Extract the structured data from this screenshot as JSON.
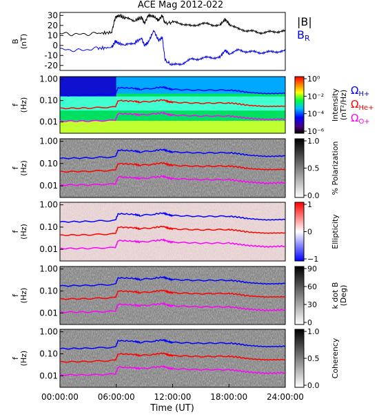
{
  "title": "ACE Mag 2012-022",
  "x_axis": {
    "label": "Time (UT)",
    "ticks": [
      "00:00:00",
      "06:00:00",
      "12:00:00",
      "18:00:00",
      "24:00:00"
    ],
    "tick_hours": [
      0,
      6,
      12,
      18,
      24
    ]
  },
  "legend_top": {
    "bmag": "|B|",
    "br": "BR",
    "br_main": "B",
    "br_sub": "R"
  },
  "legend_right": {
    "h_main": "Ω",
    "h_sub": "H+",
    "he_main": "Ω",
    "he_sub": "He+",
    "o_main": "Ω",
    "o_sub": "O+"
  },
  "colors": {
    "bmag": "#000000",
    "br": "#0000ff",
    "h_line": "#0000ff",
    "he_line": "#ff0000",
    "o_line": "#ff00ff"
  },
  "panels": [
    {
      "id": "b",
      "ylabel_1": "B",
      "ylabel_2": "(nT)",
      "yticks": [
        "30",
        "20",
        "10",
        "0",
        "-10",
        "-20"
      ],
      "ytick_values": [
        30,
        20,
        10,
        0,
        -10,
        -20
      ],
      "ylim": [
        -25,
        33
      ]
    },
    {
      "id": "intensity",
      "ylabel_1": "f",
      "ylabel_2": "(Hz)",
      "yticks": [
        "1.00",
        "0.10",
        "0.01"
      ],
      "cbar_label": "Intensity",
      "cbar_label_2": "(nT²/Hz)",
      "cbar_ticks": [
        "10⁰",
        "10⁻²",
        "10⁻⁴",
        "10⁻⁶"
      ],
      "cmap": "rainbow"
    },
    {
      "id": "polarization",
      "ylabel_1": "f",
      "ylabel_2": "(Hz)",
      "yticks": [
        "1.00",
        "0.10",
        "0.01"
      ],
      "cbar_label": "% Polarization",
      "cbar_ticks": [
        "1.0",
        "0.5",
        "0.0"
      ],
      "cmap": "gray"
    },
    {
      "id": "ellipticity",
      "ylabel_1": "f",
      "ylabel_2": "(Hz)",
      "yticks": [
        "1.00",
        "0.10",
        "0.01"
      ],
      "cbar_label": "Ellipticity",
      "cbar_ticks": [
        "1",
        "0",
        "−1"
      ],
      "cmap": "bwr"
    },
    {
      "id": "kdotb",
      "ylabel_1": "f",
      "ylabel_2": "(Hz)",
      "yticks": [
        "1.00",
        "0.10",
        "0.01"
      ],
      "cbar_label": "k dot B",
      "cbar_label_2": "(Deg)",
      "cbar_ticks": [
        "90",
        "60",
        "30",
        "0"
      ],
      "cmap": "gray"
    },
    {
      "id": "coherency",
      "ylabel_1": "f",
      "ylabel_2": "(Hz)",
      "yticks": [
        "1.00",
        "0.10",
        "0.01"
      ],
      "cbar_label": "Coherency",
      "cbar_ticks": [
        "1.0",
        "0.5",
        "0.0"
      ],
      "cmap": "gray"
    }
  ],
  "chart_data": {
    "type": "line",
    "title": "ACE Mag 2012-022",
    "xlabel": "Time (UT)",
    "xlim": [
      0,
      24
    ],
    "b_panel": {
      "ylabel": "B (nT)",
      "ylim": [
        -25,
        33
      ],
      "x": [
        0,
        2,
        4,
        5.5,
        5.9,
        6.3,
        7,
        8,
        8.7,
        9,
        9.4,
        10,
        10.5,
        10.9,
        11.2,
        12,
        13,
        14,
        15,
        16,
        17,
        17.6,
        18,
        19,
        20,
        21,
        22,
        23,
        24
      ],
      "series": [
        {
          "name": "|B|",
          "values": [
            12,
            11,
            12,
            13,
            28,
            30,
            27,
            25,
            28,
            22,
            30,
            29,
            25,
            30,
            22,
            23,
            22,
            19,
            22,
            21,
            20,
            26,
            22,
            16,
            15,
            13,
            13,
            14,
            14
          ]
        },
        {
          "name": "BR",
          "values": [
            -4,
            -5,
            -3,
            -2,
            4,
            2,
            0,
            3,
            7,
            0,
            3,
            15,
            5,
            8,
            -15,
            -20,
            -18,
            -14,
            -13,
            -12,
            -12,
            -5,
            -8,
            -5,
            -6,
            -7,
            -7,
            -6,
            -6
          ]
        }
      ]
    },
    "spectrogram_freq_lines": {
      "ylabel": "f (Hz)",
      "yscale": "log",
      "ylim": [
        0.003,
        1.3
      ],
      "x": [
        0,
        3,
        5.9,
        6.2,
        8,
        8.5,
        10,
        11,
        11.6,
        12,
        15,
        18,
        19,
        20,
        22,
        24
      ],
      "series": [
        {
          "name": "ΩH+",
          "values": [
            0.17,
            0.18,
            0.2,
            0.4,
            0.37,
            0.33,
            0.38,
            0.43,
            0.35,
            0.33,
            0.3,
            0.31,
            0.28,
            0.24,
            0.21,
            0.22
          ]
        },
        {
          "name": "ΩHe+",
          "values": [
            0.043,
            0.045,
            0.05,
            0.1,
            0.093,
            0.083,
            0.095,
            0.108,
            0.088,
            0.083,
            0.075,
            0.078,
            0.07,
            0.06,
            0.053,
            0.055
          ]
        },
        {
          "name": "ΩO+",
          "values": [
            0.011,
            0.011,
            0.012,
            0.025,
            0.023,
            0.021,
            0.024,
            0.027,
            0.022,
            0.021,
            0.019,
            0.019,
            0.017,
            0.015,
            0.013,
            0.014
          ]
        }
      ]
    }
  }
}
